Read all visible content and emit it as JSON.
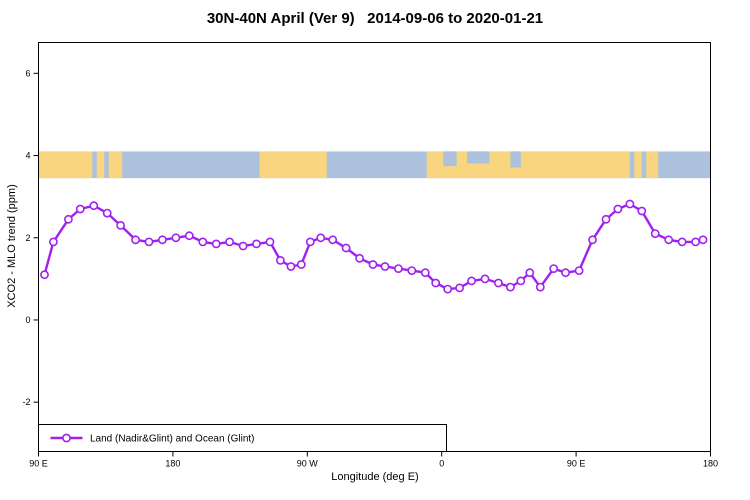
{
  "title": "30N-40N April (Ver 9)   2014-09-06 to 2020-01-21",
  "chart_data": {
    "type": "line",
    "title": "30N-40N April (Ver 9)   2014-09-06 to 2020-01-21",
    "xlabel": "Longitude (deg E)",
    "ylabel": "XCO2 - MLO trend (ppm)",
    "xlim": [
      90,
      540
    ],
    "ylim": [
      -3.2,
      6.75
    ],
    "grid": false,
    "x_ticks": [
      {
        "value": 90,
        "label": "90 E"
      },
      {
        "value": 180,
        "label": "180"
      },
      {
        "value": 270,
        "label": "90 W"
      },
      {
        "value": 360,
        "label": "0"
      },
      {
        "value": 450,
        "label": "90 E"
      },
      {
        "value": 540,
        "label": "180"
      }
    ],
    "y_ticks": [
      {
        "value": -2,
        "label": "-2"
      },
      {
        "value": 0,
        "label": "0"
      },
      {
        "value": 2,
        "label": "2"
      },
      {
        "value": 4,
        "label": "4"
      },
      {
        "value": 6,
        "label": "6"
      }
    ],
    "legend": {
      "position": "bottom-left",
      "label": "Land (Nadir&Glint) and Ocean (Glint)"
    },
    "map_band": {
      "description": "30N-40N latitude world-map strip drawn across the plot",
      "y_range": [
        3.45,
        4.1
      ],
      "ocean_color": "#ACC1DB",
      "land_color": "#FAD57F",
      "land_segments": [
        [
          90,
          126
        ],
        [
          129,
          134
        ],
        [
          137,
          146
        ],
        [
          238,
          283
        ],
        [
          350,
          486
        ],
        [
          489,
          494
        ],
        [
          497,
          505
        ]
      ],
      "sea_patches": [
        [
          361,
          370,
          0.55
        ],
        [
          377,
          392,
          0.45
        ],
        [
          406,
          413,
          0.6
        ]
      ]
    },
    "series": [
      {
        "name": "Land (Nadir&Glint) and Ocean (Glint)",
        "color": "#A020F0",
        "marker": "open-circle",
        "points": [
          [
            94,
            1.1
          ],
          [
            100,
            1.9
          ],
          [
            110,
            2.45
          ],
          [
            118,
            2.7
          ],
          [
            127,
            2.78
          ],
          [
            136,
            2.6
          ],
          [
            145,
            2.3
          ],
          [
            155,
            1.95
          ],
          [
            164,
            1.9
          ],
          [
            173,
            1.95
          ],
          [
            182,
            2.0
          ],
          [
            191,
            2.05
          ],
          [
            200,
            1.9
          ],
          [
            209,
            1.85
          ],
          [
            218,
            1.9
          ],
          [
            227,
            1.8
          ],
          [
            236,
            1.85
          ],
          [
            245,
            1.9
          ],
          [
            252,
            1.45
          ],
          [
            259,
            1.3
          ],
          [
            266,
            1.35
          ],
          [
            272,
            1.9
          ],
          [
            279,
            2.0
          ],
          [
            287,
            1.95
          ],
          [
            296,
            1.75
          ],
          [
            305,
            1.5
          ],
          [
            314,
            1.35
          ],
          [
            322,
            1.3
          ],
          [
            331,
            1.25
          ],
          [
            340,
            1.2
          ],
          [
            349,
            1.15
          ],
          [
            356,
            0.9
          ],
          [
            364,
            0.75
          ],
          [
            372,
            0.78
          ],
          [
            380,
            0.95
          ],
          [
            389,
            1.0
          ],
          [
            398,
            0.9
          ],
          [
            406,
            0.8
          ],
          [
            413,
            0.95
          ],
          [
            419,
            1.15
          ],
          [
            426,
            0.8
          ],
          [
            435,
            1.25
          ],
          [
            443,
            1.15
          ],
          [
            452,
            1.2
          ],
          [
            461,
            1.95
          ],
          [
            470,
            2.45
          ],
          [
            478,
            2.7
          ],
          [
            486,
            2.82
          ],
          [
            494,
            2.65
          ],
          [
            503,
            2.1
          ],
          [
            512,
            1.95
          ],
          [
            521,
            1.9
          ],
          [
            530,
            1.9
          ],
          [
            535,
            1.95
          ]
        ]
      }
    ]
  }
}
